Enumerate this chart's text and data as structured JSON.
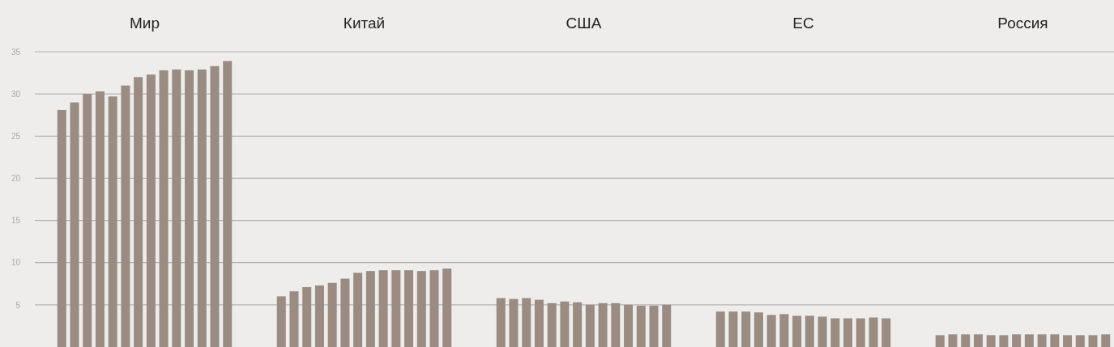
{
  "chart_data": {
    "type": "bar",
    "categories": [
      "Мир",
      "Китай",
      "США",
      "ЕС",
      "Россия"
    ],
    "series": [
      {
        "color": "#9a8c82",
        "values": [
          28.1,
          6.0,
          5.8,
          4.2,
          1.4
        ]
      },
      {
        "color": "#9a8c82",
        "values": [
          29.0,
          6.6,
          5.7,
          4.2,
          1.5
        ]
      },
      {
        "color": "#9a8c82",
        "values": [
          30.0,
          7.1,
          5.8,
          4.2,
          1.5
        ]
      },
      {
        "color": "#9a8c82",
        "values": [
          30.3,
          7.3,
          5.6,
          4.1,
          1.5
        ]
      },
      {
        "color": "#9a8c82",
        "values": [
          29.7,
          7.6,
          5.2,
          3.8,
          1.4
        ]
      },
      {
        "color": "#9a8c82",
        "values": [
          31.0,
          8.1,
          5.4,
          3.9,
          1.4
        ]
      },
      {
        "color": "#9a8c82",
        "values": [
          32.0,
          8.8,
          5.3,
          3.7,
          1.5
        ]
      },
      {
        "color": "#9a8c82",
        "values": [
          32.3,
          9.0,
          5.0,
          3.7,
          1.5
        ]
      },
      {
        "color": "#9a8c82",
        "values": [
          32.8,
          9.1,
          5.2,
          3.6,
          1.5
        ]
      },
      {
        "color": "#9a8c82",
        "values": [
          32.9,
          9.1,
          5.2,
          3.4,
          1.5
        ]
      },
      {
        "color": "#9a8c82",
        "values": [
          32.8,
          9.1,
          5.0,
          3.4,
          1.4
        ]
      },
      {
        "color": "#9a8c82",
        "values": [
          32.9,
          9.0,
          4.9,
          3.4,
          1.4
        ]
      },
      {
        "color": "#9a8c82",
        "values": [
          33.3,
          9.1,
          4.9,
          3.5,
          1.4
        ]
      },
      {
        "color": "#9a8c82",
        "values": [
          33.9,
          9.3,
          5.0,
          3.4,
          1.5
        ]
      }
    ],
    "ylim": [
      0,
      35
    ],
    "yticks": [
      5,
      10,
      15,
      20,
      25,
      30,
      35
    ],
    "grid": "y"
  }
}
